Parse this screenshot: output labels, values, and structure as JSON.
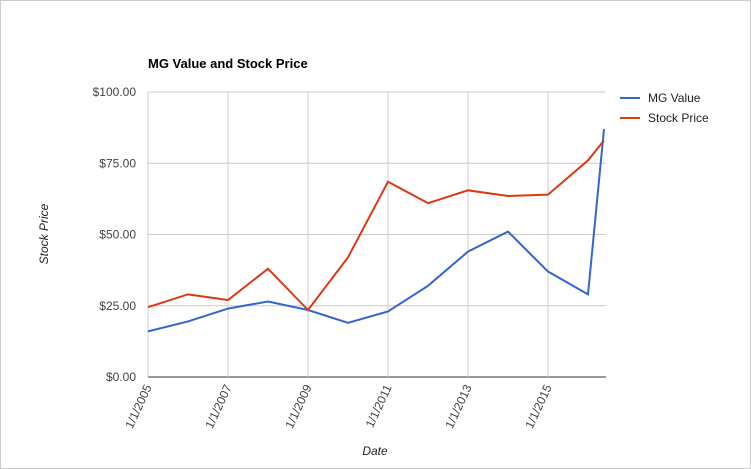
{
  "chart_data": {
    "type": "line",
    "title": "MG Value and Stock Price",
    "x_label": "Date",
    "y_label": "Stock Price",
    "x": [
      2005,
      2006,
      2007,
      2008,
      2009,
      2010,
      2011,
      2012,
      2013,
      2014,
      2015,
      2016,
      2016.4
    ],
    "series": [
      {
        "name": "MG Value",
        "color": "#3366cc",
        "values": [
          16,
          19.5,
          24,
          26.5,
          23.5,
          19,
          23,
          32,
          44,
          51,
          37,
          29,
          87
        ]
      },
      {
        "name": "Stock Price",
        "color": "#dc3912",
        "values": [
          24.5,
          29,
          27,
          38,
          23.5,
          42,
          68.5,
          61,
          65.5,
          63.5,
          64,
          76,
          83
        ]
      }
    ],
    "xlim": [
      2005,
      2016.45
    ],
    "xticks": [
      {
        "value": 2005,
        "label": "1/1/2005"
      },
      {
        "value": 2007,
        "label": "1/1/2007"
      },
      {
        "value": 2009,
        "label": "1/1/2009"
      },
      {
        "value": 2011,
        "label": "1/1/2011"
      },
      {
        "value": 2013,
        "label": "1/1/2013"
      },
      {
        "value": 2015,
        "label": "1/1/2015"
      }
    ],
    "ylim": [
      0,
      100
    ],
    "yticks": [
      {
        "value": 0,
        "label": "$0.00"
      },
      {
        "value": 25,
        "label": "$25.00"
      },
      {
        "value": 50,
        "label": "$50.00"
      },
      {
        "value": 75,
        "label": "$75.00"
      },
      {
        "value": 100,
        "label": "$100.00"
      }
    ],
    "grid": true,
    "legend": "right"
  }
}
